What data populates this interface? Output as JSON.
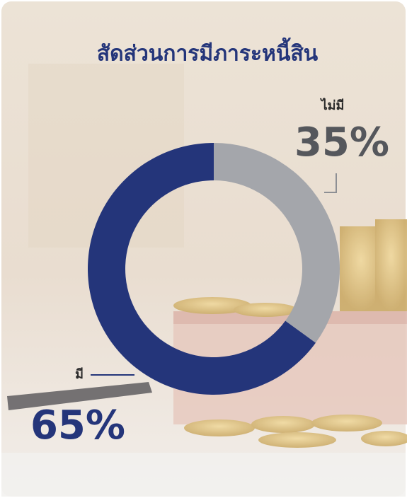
{
  "chart_data": {
    "type": "donut",
    "title": "สัดส่วนการมีภาระหนี้สิน",
    "categories": [
      "มี",
      "ไม่มี"
    ],
    "values": [
      65,
      35
    ],
    "value_labels": [
      "65%",
      "35%"
    ],
    "colors": [
      "#24357a",
      "#a4a6ab"
    ]
  }
}
